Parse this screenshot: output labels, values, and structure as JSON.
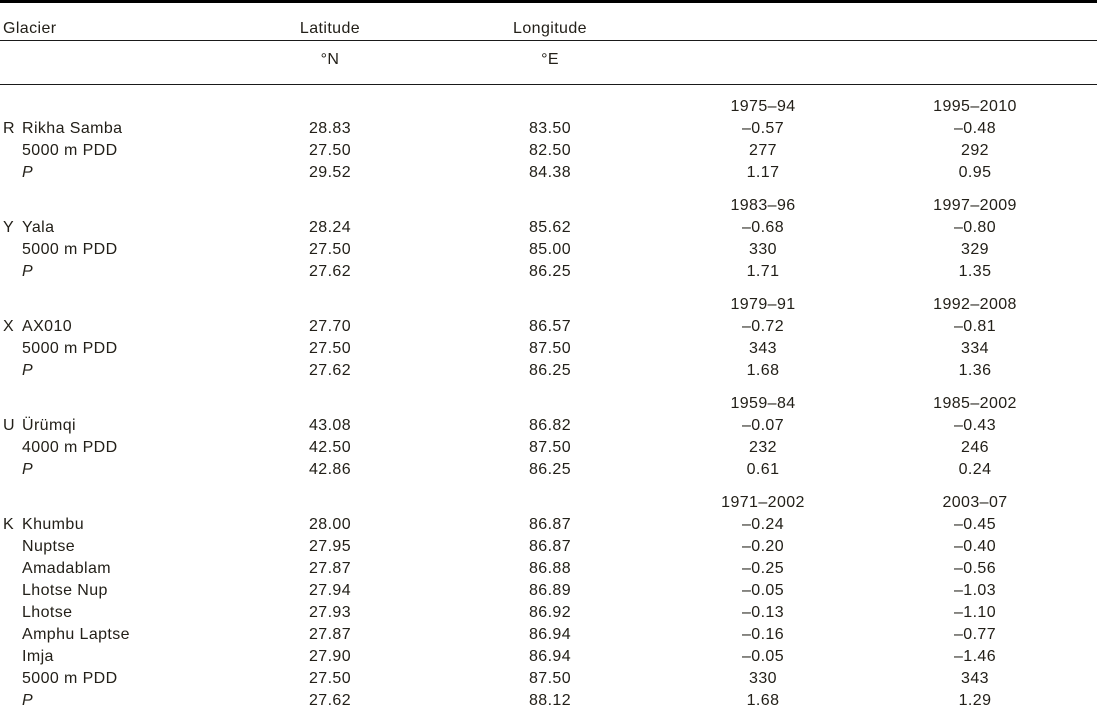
{
  "page": {
    "background_color": "#ffffff",
    "text_color": "#232019",
    "rule_color": "#000000"
  },
  "table": {
    "headers": {
      "glacier": "Glacier",
      "latitude": "Latitude",
      "latitude_unit": "°N",
      "longitude": "Longitude",
      "longitude_unit": "°E"
    },
    "groups": [
      {
        "periods": [
          "1975–94",
          "1995–2010"
        ],
        "rows": [
          {
            "key": "R",
            "name": "Rikha Samba",
            "lat": "28.83",
            "lon": "83.50",
            "p1": "–0.57",
            "p2": "–0.48"
          },
          {
            "key": "",
            "name": "5000 m PDD",
            "lat": "27.50",
            "lon": "82.50",
            "p1": "277",
            "p2": "292"
          },
          {
            "key": "",
            "name": "P",
            "lat": "29.52",
            "lon": "84.38",
            "p1": "1.17",
            "p2": "0.95"
          }
        ]
      },
      {
        "periods": [
          "1983–96",
          "1997–2009"
        ],
        "rows": [
          {
            "key": "Y",
            "name": "Yala",
            "lat": "28.24",
            "lon": "85.62",
            "p1": "–0.68",
            "p2": "–0.80"
          },
          {
            "key": "",
            "name": "5000 m PDD",
            "lat": "27.50",
            "lon": "85.00",
            "p1": "330",
            "p2": "329"
          },
          {
            "key": "",
            "name": "P",
            "lat": "27.62",
            "lon": "86.25",
            "p1": "1.71",
            "p2": "1.35"
          }
        ]
      },
      {
        "periods": [
          "1979–91",
          "1992–2008"
        ],
        "rows": [
          {
            "key": "X",
            "name": "AX010",
            "lat": "27.70",
            "lon": "86.57",
            "p1": "–0.72",
            "p2": "–0.81"
          },
          {
            "key": "",
            "name": "5000 m PDD",
            "lat": "27.50",
            "lon": "87.50",
            "p1": "343",
            "p2": "334"
          },
          {
            "key": "",
            "name": "P",
            "lat": "27.62",
            "lon": "86.25",
            "p1": "1.68",
            "p2": "1.36"
          }
        ]
      },
      {
        "periods": [
          "1959–84",
          "1985–2002"
        ],
        "rows": [
          {
            "key": "U",
            "name": "Ürümqi",
            "lat": "43.08",
            "lon": "86.82",
            "p1": "–0.07",
            "p2": "–0.43"
          },
          {
            "key": "",
            "name": "4000 m PDD",
            "lat": "42.50",
            "lon": "87.50",
            "p1": "232",
            "p2": "246"
          },
          {
            "key": "",
            "name": "P",
            "lat": "42.86",
            "lon": "86.25",
            "p1": "0.61",
            "p2": "0.24"
          }
        ]
      },
      {
        "periods": [
          "1971–2002",
          "2003–07"
        ],
        "rows": [
          {
            "key": "K",
            "name": "Khumbu",
            "lat": "28.00",
            "lon": "86.87",
            "p1": "–0.24",
            "p2": "–0.45"
          },
          {
            "key": "",
            "name": "Nuptse",
            "lat": "27.95",
            "lon": "86.87",
            "p1": "–0.20",
            "p2": "–0.40"
          },
          {
            "key": "",
            "name": "Amadablam",
            "lat": "27.87",
            "lon": "86.88",
            "p1": "–0.25",
            "p2": "–0.56"
          },
          {
            "key": "",
            "name": "Lhotse Nup",
            "lat": "27.94",
            "lon": "86.89",
            "p1": "–0.05",
            "p2": "–1.03"
          },
          {
            "key": "",
            "name": "Lhotse",
            "lat": "27.93",
            "lon": "86.92",
            "p1": "–0.13",
            "p2": "–1.10"
          },
          {
            "key": "",
            "name": "Amphu Laptse",
            "lat": "27.87",
            "lon": "86.94",
            "p1": "–0.16",
            "p2": "–0.77"
          },
          {
            "key": "",
            "name": "Imja",
            "lat": "27.90",
            "lon": "86.94",
            "p1": "–0.05",
            "p2": "–1.46"
          },
          {
            "key": "",
            "name": "5000 m PDD",
            "lat": "27.50",
            "lon": "87.50",
            "p1": "330",
            "p2": "343"
          },
          {
            "key": "",
            "name": "P",
            "lat": "27.62",
            "lon": "88.12",
            "p1": "1.68",
            "p2": "1.29"
          }
        ]
      }
    ]
  }
}
